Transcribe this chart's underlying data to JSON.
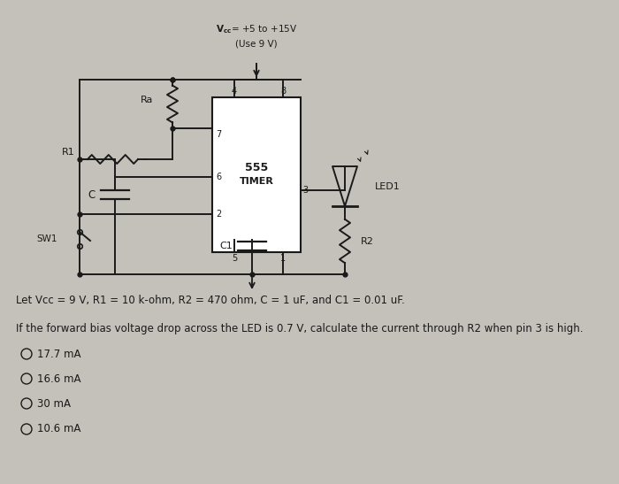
{
  "bg_color": "#c4c0ba",
  "text_color": "#1a1a1a",
  "text_let": "Let Vcc = 9 V, R1 = 10 k-ohm, R2 = 470 ohm, C = 1 uF, and C1 = 0.01 uF.",
  "text_question": "If the forward bias voltage drop across the LED is 0.7 V, calculate the current through R2 when pin 3 is high.",
  "options": [
    "17.7 mA",
    "16.6 mA",
    "30 mA",
    "10.6 mA"
  ],
  "vcc_line1": "Vcc= +5 to +15V",
  "vcc_line2": "(Use 9 V)"
}
